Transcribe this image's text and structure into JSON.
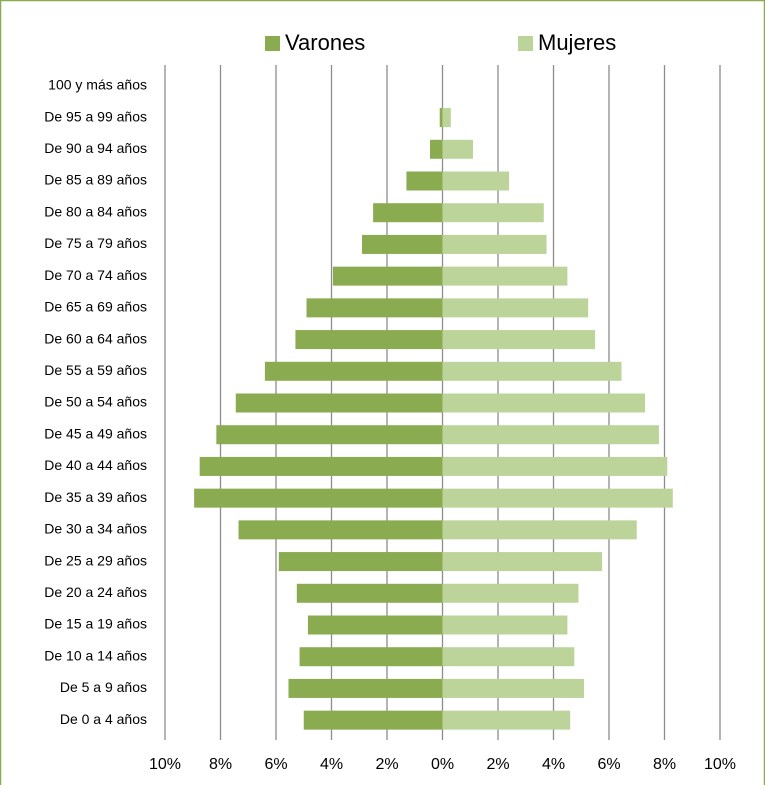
{
  "chart_data": {
    "type": "bar",
    "orientation": "horizontal",
    "categories": [
      "100 y más años",
      "De 95 a 99 años",
      "De 90 a 94 años",
      "De 85 a 89 años",
      "De 80 a 84 años",
      "De 75 a 79 años",
      "De 70 a 74 años",
      "De 65 a 69 años",
      "De 60 a 64 años",
      "De 55 a 59 años",
      "De 50 a 54 años",
      "De 45 a 49 años",
      "De 40 a 44 años",
      "De 35 a 39 años",
      "De 30 a 34 años",
      "De 25 a 29 años",
      "De 20 a 24 años",
      "De 15 a 19 años",
      "De 10 a 14 años",
      "De 5 a 9 años",
      "De 0 a 4 años"
    ],
    "series": [
      {
        "name": "Varones",
        "color": "#8aab4f",
        "values": [
          0,
          -0.1,
          -0.45,
          -1.3,
          -2.5,
          -2.9,
          -3.95,
          -4.9,
          -5.3,
          -6.4,
          -7.45,
          -8.15,
          -8.75,
          -8.95,
          -7.35,
          -5.9,
          -5.25,
          -4.85,
          -5.15,
          -5.55,
          -5.0
        ]
      },
      {
        "name": "Mujeres",
        "color": "#bcd49a",
        "values": [
          0,
          0.3,
          1.1,
          2.4,
          3.65,
          3.75,
          4.5,
          5.25,
          5.5,
          6.45,
          7.3,
          7.8,
          8.1,
          8.3,
          7.0,
          5.75,
          4.9,
          4.5,
          4.75,
          5.1,
          4.6
        ]
      }
    ],
    "xlim": [
      -10,
      10
    ],
    "xticks": [
      {
        "value": -10,
        "label": "10%"
      },
      {
        "value": -8,
        "label": "8%"
      },
      {
        "value": -6,
        "label": "6%"
      },
      {
        "value": -4,
        "label": "4%"
      },
      {
        "value": -2,
        "label": "2%"
      },
      {
        "value": 0,
        "label": "0%"
      },
      {
        "value": 2,
        "label": "2%"
      },
      {
        "value": 4,
        "label": "4%"
      },
      {
        "value": 6,
        "label": "6%"
      },
      {
        "value": 8,
        "label": "8%"
      },
      {
        "value": 10,
        "label": "10%"
      }
    ],
    "grid": true,
    "legend": "top"
  }
}
